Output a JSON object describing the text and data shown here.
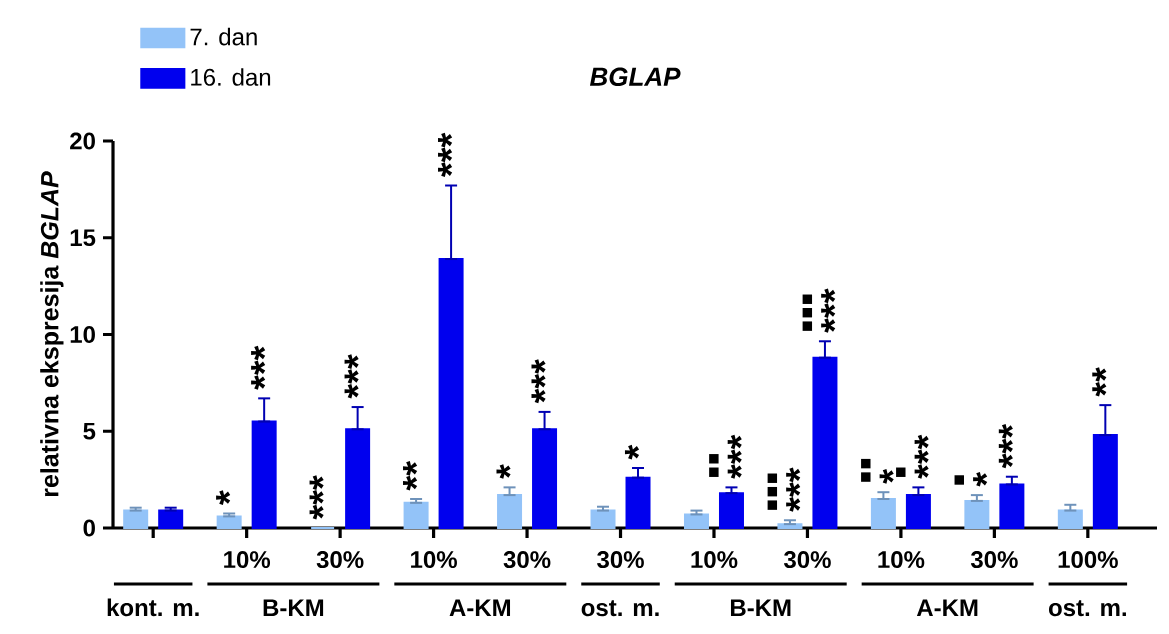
{
  "chart_data": {
    "type": "bar",
    "title": "BGLAP",
    "ylabel": "relativna ekspresija *BGLAP*",
    "categories": [
      null,
      "10%",
      "30%",
      "10%",
      "30%",
      "30%",
      "10%",
      "30%",
      "10%",
      "30%",
      "100%"
    ],
    "series": [
      {
        "name": "7. dan",
        "color": "#93c3f8",
        "values": [
          0.9,
          0.6,
          0,
          1.3,
          1.7,
          0.9,
          0.7,
          0.2,
          1.5,
          1.4,
          0.9
        ],
        "errors": [
          [
            0.9,
            1.05
          ],
          [
            0.6,
            0.75
          ],
          null,
          [
            1.3,
            1.5
          ],
          [
            1.7,
            2.1
          ],
          [
            0.9,
            1.1
          ],
          [
            0.7,
            0.9
          ],
          [
            0.2,
            0.4
          ],
          [
            1.5,
            1.85
          ],
          [
            1.4,
            1.7
          ],
          [
            0.9,
            1.2
          ]
        ],
        "value_labels": [
          null,
          "*",
          "***",
          "**",
          "*",
          null,
          null,
          "▪▪▪ ***",
          "▪▪ *",
          "▪ *",
          null
        ]
      },
      {
        "name": "16. dan",
        "color": "#0000ee",
        "values": [
          0.9,
          5.5,
          5.1,
          13.9,
          5.1,
          2.6,
          1.8,
          8.8,
          1.7,
          2.25,
          4.8
        ],
        "errors": [
          [
            0.9,
            1.05
          ],
          [
            5.5,
            6.7
          ],
          [
            5.1,
            6.25
          ],
          [
            13.9,
            17.7
          ],
          [
            5.1,
            6.0
          ],
          [
            2.6,
            3.1
          ],
          [
            1.8,
            2.1
          ],
          [
            8.8,
            9.65
          ],
          [
            1.7,
            2.1
          ],
          [
            2.25,
            2.65
          ],
          [
            4.8,
            6.35
          ]
        ],
        "value_labels": [
          null,
          "***",
          "***",
          "***",
          "***",
          "*",
          "▪▪ ***",
          "▪▪▪ ***",
          "▪ ***",
          "***",
          "**"
        ]
      }
    ],
    "ylim": [
      0,
      20
    ],
    "yticks": [
      0,
      5,
      10,
      15,
      20
    ],
    "legend": "top left",
    "annotations": [
      "kont. m.",
      "B-KM",
      "A-KM",
      "ost. m.",
      "B-KM",
      "A-KM",
      "ost. m."
    ]
  }
}
